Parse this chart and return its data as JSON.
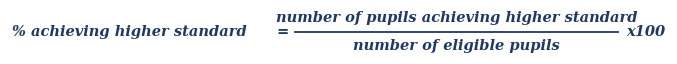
{
  "bg_color": "#ffffff",
  "text_color": "#1F3864",
  "lhs_text": "% achieving higher standard",
  "equals": "=",
  "numerator": "number of pupils achieving higher standard",
  "denominator": "number of eligible pupils",
  "multiplier": "x100",
  "fontsize": 10.5,
  "fig_width": 6.77,
  "fig_height": 0.64,
  "dpi": 100
}
